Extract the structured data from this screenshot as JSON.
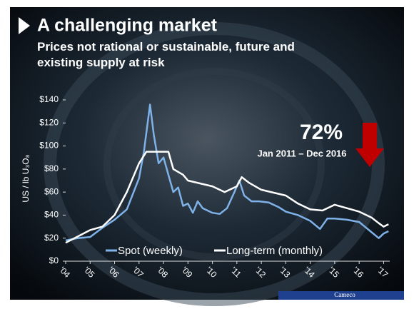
{
  "chart_data": {
    "type": "line",
    "title": "A challenging market",
    "subtitle": "Prices not rational or sustainable, future and existing supply at risk",
    "y_label": "US / lb U₃O₈",
    "annotation_value": "72%",
    "annotation_period": "Jan 2011 – Dec 2016",
    "source": "Cameco",
    "xlim": [
      2004,
      2017.25
    ],
    "xticks": [
      {
        "value": 2004,
        "label": "'04"
      },
      {
        "value": 2005,
        "label": "'05"
      },
      {
        "value": 2006,
        "label": "'06"
      },
      {
        "value": 2007,
        "label": "'07"
      },
      {
        "value": 2008,
        "label": "'08"
      },
      {
        "value": 2009,
        "label": "'09"
      },
      {
        "value": 2010,
        "label": "'10"
      },
      {
        "value": 2011,
        "label": "'11"
      },
      {
        "value": 2012,
        "label": "'12"
      },
      {
        "value": 2013,
        "label": "'13"
      },
      {
        "value": 2014,
        "label": "'14"
      },
      {
        "value": 2015,
        "label": "'15"
      },
      {
        "value": 2016,
        "label": "'16"
      },
      {
        "value": 2017,
        "label": "'17"
      }
    ],
    "ylim": [
      0,
      140
    ],
    "yticks": [
      {
        "value": 0,
        "label": "$0"
      },
      {
        "value": 20,
        "label": "$20"
      },
      {
        "value": 40,
        "label": "$40"
      },
      {
        "value": 60,
        "label": "$60"
      },
      {
        "value": 80,
        "label": "$80"
      },
      {
        "value": 100,
        "label": "$100"
      },
      {
        "value": 120,
        "label": "$120"
      },
      {
        "value": 140,
        "label": "$140"
      }
    ],
    "series": [
      {
        "name": "Spot (weekly)",
        "color": "#7fb2e8",
        "x": [
          2004.0,
          2004.5,
          2005.0,
          2005.5,
          2006.0,
          2006.5,
          2007.0,
          2007.2,
          2007.45,
          2007.6,
          2007.8,
          2008.0,
          2008.2,
          2008.4,
          2008.6,
          2008.8,
          2009.0,
          2009.2,
          2009.4,
          2009.6,
          2009.8,
          2010.0,
          2010.3,
          2010.6,
          2010.9,
          2011.1,
          2011.3,
          2011.6,
          2011.9,
          2012.3,
          2012.7,
          2013.0,
          2013.5,
          2014.0,
          2014.4,
          2014.7,
          2015.0,
          2015.5,
          2016.0,
          2016.4,
          2016.8,
          2017.0,
          2017.2
        ],
        "values": [
          18,
          20,
          21,
          29,
          36,
          45,
          72,
          95,
          136,
          110,
          85,
          90,
          75,
          60,
          64,
          48,
          50,
          42,
          52,
          46,
          44,
          42,
          41,
          46,
          60,
          70,
          57,
          52,
          52,
          51,
          47,
          43,
          40,
          35,
          28,
          37,
          37,
          36,
          34,
          27,
          20,
          24,
          26
        ]
      },
      {
        "name": "Long-term (monthly)",
        "color": "#ffffff",
        "x": [
          2004.0,
          2005.0,
          2005.5,
          2006.0,
          2006.5,
          2007.0,
          2007.3,
          2008.2,
          2008.4,
          2008.8,
          2009.0,
          2010.0,
          2010.5,
          2011.0,
          2011.2,
          2011.5,
          2012.0,
          2013.0,
          2013.5,
          2014.0,
          2014.5,
          2015.0,
          2015.5,
          2016.0,
          2016.5,
          2016.8,
          2017.0,
          2017.2
        ],
        "values": [
          16,
          27,
          30,
          40,
          60,
          85,
          95,
          95,
          80,
          75,
          70,
          65,
          60,
          65,
          73,
          68,
          62,
          57,
          50,
          45,
          44,
          49,
          46,
          43,
          38,
          33,
          30,
          32
        ]
      }
    ]
  }
}
